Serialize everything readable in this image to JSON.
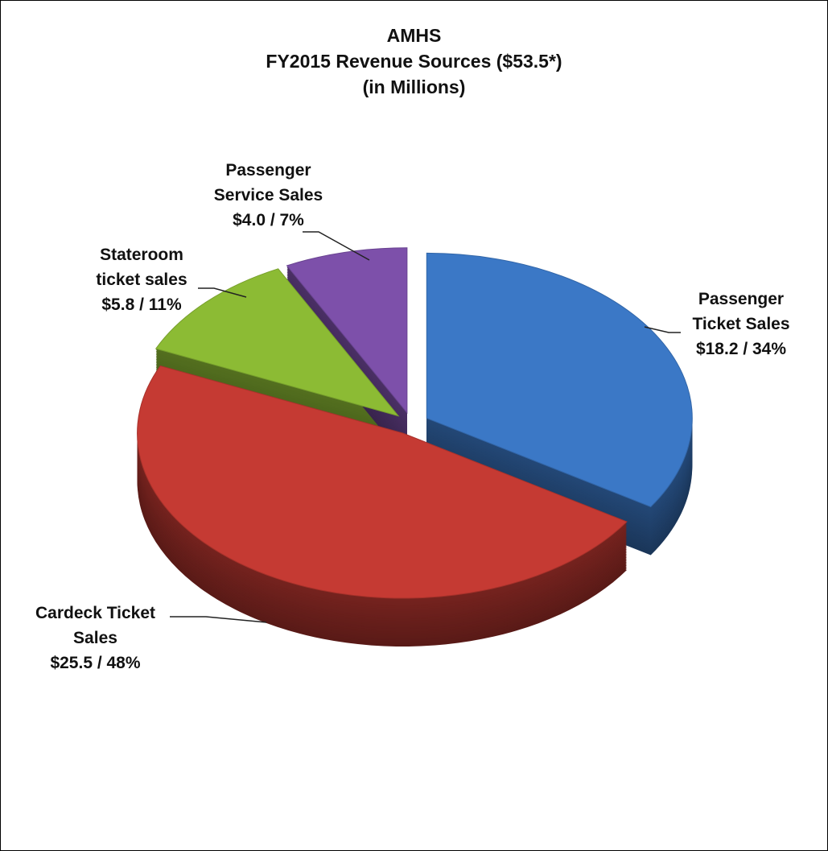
{
  "chart_data": {
    "type": "pie",
    "title": [
      "AMHS",
      "FY2015 Revenue Sources ($53.5*)",
      "(in Millions)"
    ],
    "categories": [
      "Passenger Ticket Sales",
      "Cardeck Ticket Sales",
      "Stateroom ticket sales",
      "Passenger Service Sales"
    ],
    "values": [
      18.2,
      25.5,
      5.8,
      4.0
    ],
    "value_labels": [
      "$18.2 / 34%",
      "$25.5 / 48%",
      "$5.8 / 11%",
      "$4.0 / 7%"
    ],
    "colors": [
      "#3b78c6",
      "#c53a33",
      "#8cbb34",
      "#7d50aa"
    ]
  }
}
